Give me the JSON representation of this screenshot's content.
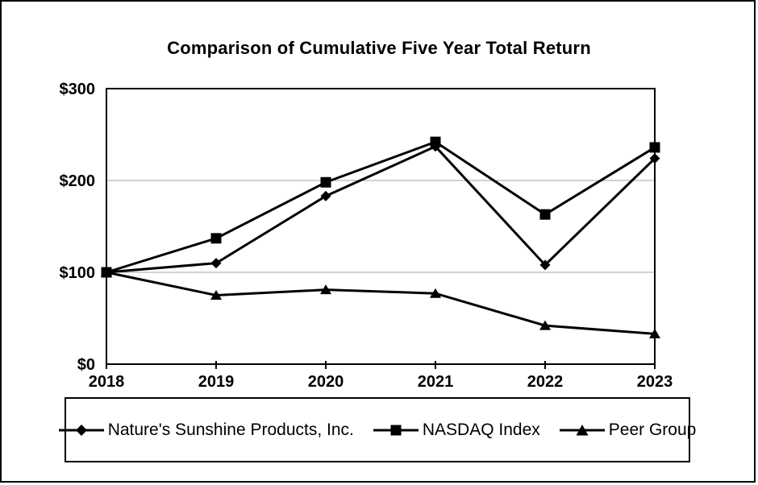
{
  "chart_data": {
    "type": "line",
    "title": "Comparison of Cumulative Five Year Total Return",
    "categories": [
      "2018",
      "2019",
      "2020",
      "2021",
      "2022",
      "2023"
    ],
    "series": [
      {
        "name": "Nature's Sunshine Products, Inc.",
        "marker": "diamond",
        "values": [
          100,
          110,
          183,
          237,
          108,
          224
        ]
      },
      {
        "name": "NASDAQ Index",
        "marker": "square",
        "values": [
          100,
          137,
          198,
          242,
          163,
          236
        ]
      },
      {
        "name": "Peer Group",
        "marker": "triangle",
        "values": [
          100,
          75,
          81,
          77,
          42,
          33
        ]
      }
    ],
    "xlabel": "",
    "ylabel": "",
    "ylim": [
      0,
      300
    ],
    "y_tick_values": [
      0,
      100,
      200,
      300
    ],
    "y_tick_labels": [
      "$0",
      "$100",
      "$200",
      "$300"
    ],
    "gridline_values": [
      100,
      200
    ],
    "grid": "horizontal",
    "legend_position": "bottom",
    "colors": {
      "series": "#000000",
      "gridline": "#a6a6a6",
      "frame": "#000000"
    }
  }
}
